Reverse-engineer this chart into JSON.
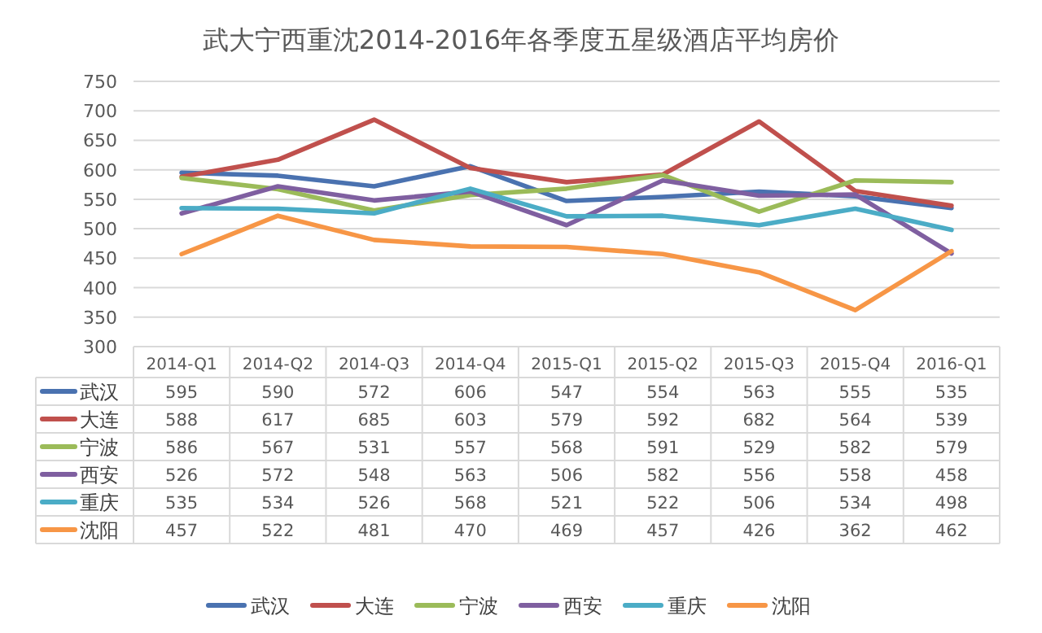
{
  "chart_data": {
    "type": "line",
    "title": "武大宁西重沈2014-2016年各季度五星级酒店平均房价",
    "categories": [
      "2014-Q1",
      "2014-Q2",
      "2014-Q3",
      "2014-Q4",
      "2015-Q1",
      "2015-Q2",
      "2015-Q3",
      "2015-Q4",
      "2016-Q1"
    ],
    "series": [
      {
        "name": "武汉",
        "color": "#4a72b0",
        "values": [
          595,
          590,
          572,
          606,
          547,
          554,
          563,
          555,
          535
        ]
      },
      {
        "name": "大连",
        "color": "#c0504d",
        "values": [
          588,
          617,
          685,
          603,
          579,
          592,
          682,
          564,
          539
        ]
      },
      {
        "name": "宁波",
        "color": "#9bbb59",
        "values": [
          586,
          567,
          531,
          557,
          568,
          591,
          529,
          582,
          579
        ]
      },
      {
        "name": "西安",
        "color": "#7f5fa0",
        "values": [
          526,
          572,
          548,
          563,
          506,
          582,
          556,
          558,
          458
        ]
      },
      {
        "name": "重庆",
        "color": "#4bacc6",
        "values": [
          535,
          534,
          526,
          568,
          521,
          522,
          506,
          534,
          498
        ]
      },
      {
        "name": "沈阳",
        "color": "#f79646",
        "values": [
          457,
          522,
          481,
          470,
          469,
          457,
          426,
          362,
          462
        ]
      }
    ],
    "ylim": [
      300,
      750
    ],
    "yticks": [
      300,
      350,
      400,
      450,
      500,
      550,
      600,
      650,
      700,
      750
    ],
    "grid": "y",
    "legend": "bottom",
    "data_labels": true,
    "marker": "none",
    "line_style": "solid"
  }
}
